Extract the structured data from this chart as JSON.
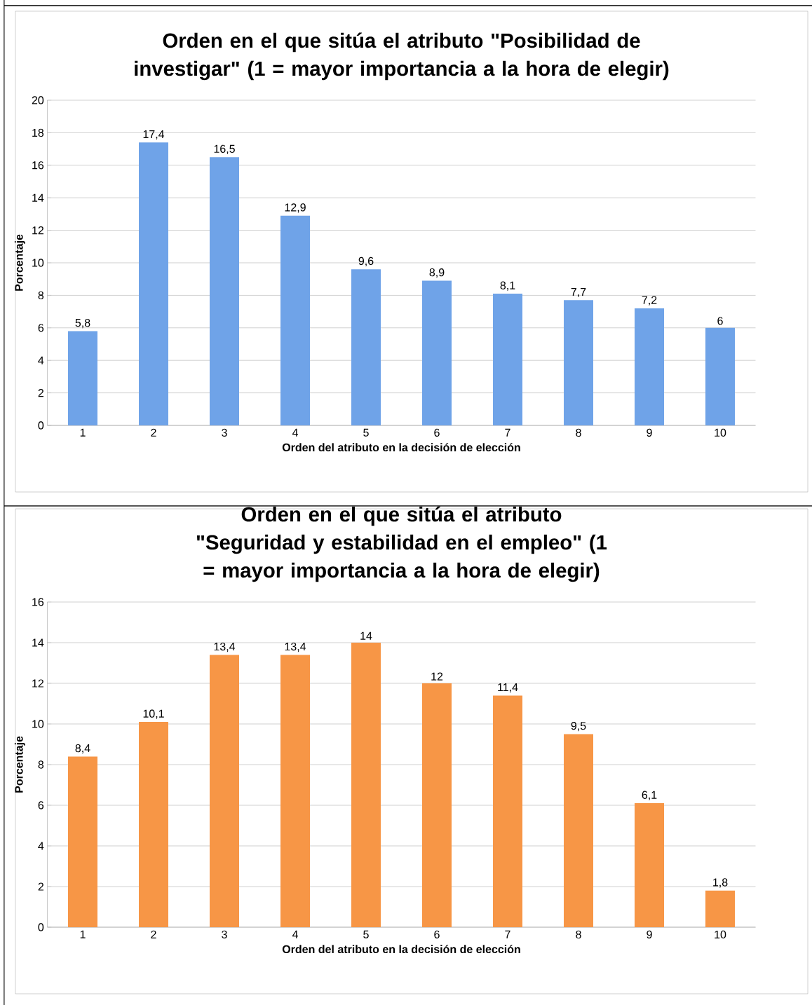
{
  "chart_data": [
    {
      "type": "bar",
      "title": "Orden en el que sitúa el atributo \"Posibilidad de investigar\" (1 =  mayor importancia a la hora de elegir)",
      "xlabel": "Orden del atributo en la decisión de elección",
      "ylabel": "Porcentaje",
      "categories": [
        "1",
        "2",
        "3",
        "4",
        "5",
        "6",
        "7",
        "8",
        "9",
        "10"
      ],
      "values": [
        5.8,
        17.4,
        16.5,
        12.9,
        9.6,
        8.9,
        8.1,
        7.7,
        7.2,
        6
      ],
      "value_labels": [
        "5,8",
        "17,4",
        "16,5",
        "12,9",
        "9,6",
        "8,9",
        "8,1",
        "7,7",
        "7,2",
        "6"
      ],
      "color": "#6fa3e8",
      "ylim": [
        0,
        20
      ],
      "yticks": [
        0,
        2,
        4,
        6,
        8,
        10,
        12,
        14,
        16,
        18,
        20
      ],
      "grid": "y"
    },
    {
      "type": "bar",
      "title": "Orden en el que sitúa el atributo \"Seguridad y estabilidad en el empleo\"  (1 =  mayor importancia a la hora de elegir)",
      "xlabel": "Orden del atributo en la decisión de elección",
      "ylabel": "Porcentaje",
      "categories": [
        "1",
        "2",
        "3",
        "4",
        "5",
        "6",
        "7",
        "8",
        "9",
        "10"
      ],
      "values": [
        8.4,
        10.1,
        13.4,
        13.4,
        14,
        12,
        11.4,
        9.5,
        6.1,
        1.8
      ],
      "value_labels": [
        "8,4",
        "10,1",
        "13,4",
        "13,4",
        "14",
        "12",
        "11,4",
        "9,5",
        "6,1",
        "1,8"
      ],
      "color": "#f79646",
      "ylim": [
        0,
        16
      ],
      "yticks": [
        0,
        2,
        4,
        6,
        8,
        10,
        12,
        14,
        16
      ],
      "grid": "y"
    }
  ]
}
